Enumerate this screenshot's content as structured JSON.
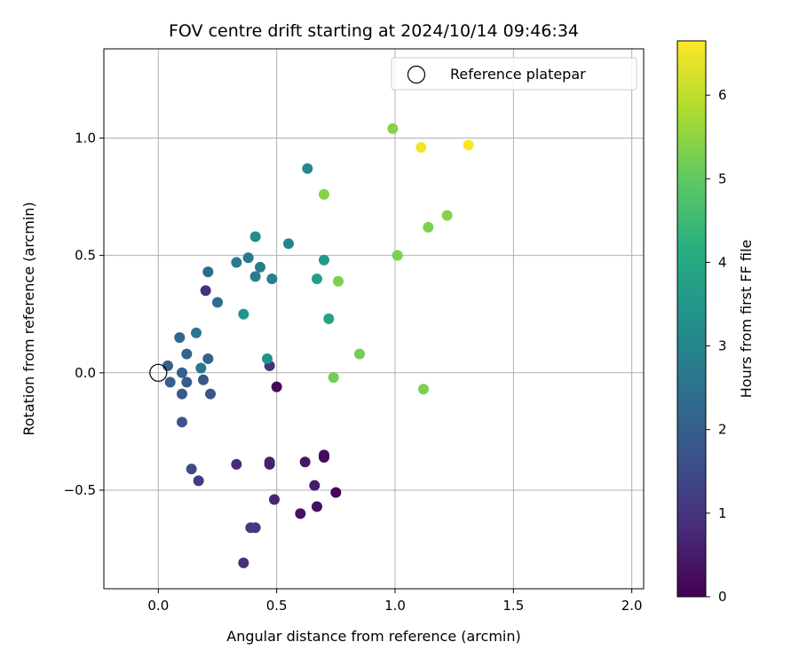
{
  "chart_data": {
    "type": "scatter",
    "title": "FOV centre drift starting at 2024/10/14 09:46:34",
    "xlabel": "Angular distance from reference (arcmin)",
    "ylabel": "Rotation from reference (arcmin)",
    "xlim": [
      -0.23,
      2.05
    ],
    "ylim": [
      -0.92,
      1.38
    ],
    "xticks": [
      0.0,
      0.5,
      1.0,
      1.5,
      2.0
    ],
    "xtick_labels": [
      "0.0",
      "0.5",
      "1.0",
      "1.5",
      "2.0"
    ],
    "yticks": [
      -0.5,
      0.0,
      0.5,
      1.0
    ],
    "ytick_labels": [
      "−0.5",
      "0.0",
      "0.5",
      "1.0"
    ],
    "grid": true,
    "legend": {
      "position": "top-right",
      "entries": [
        "Reference platepar"
      ]
    },
    "reference_point": {
      "x": 0.0,
      "y": 0.0
    },
    "colorbar": {
      "label": "Hours from first FF file",
      "colormap": "viridis",
      "range": [
        0,
        6.65
      ],
      "ticks": [
        0,
        1,
        2,
        3,
        4,
        5,
        6
      ],
      "tick_labels": [
        "0",
        "1",
        "2",
        "3",
        "4",
        "5",
        "6"
      ]
    },
    "points": [
      {
        "x": 0.5,
        "y": -0.06,
        "h": 0.1
      },
      {
        "x": 0.75,
        "y": -0.51,
        "h": 0.1
      },
      {
        "x": 0.7,
        "y": -0.36,
        "h": 0.2
      },
      {
        "x": 0.7,
        "y": -0.35,
        "h": 0.2
      },
      {
        "x": 0.67,
        "y": -0.57,
        "h": 0.3
      },
      {
        "x": 0.6,
        "y": -0.6,
        "h": 0.3
      },
      {
        "x": 0.62,
        "y": -0.38,
        "h": 0.4
      },
      {
        "x": 0.66,
        "y": -0.48,
        "h": 0.5
      },
      {
        "x": 0.47,
        "y": -0.39,
        "h": 0.6
      },
      {
        "x": 0.47,
        "y": -0.38,
        "h": 0.6
      },
      {
        "x": 0.49,
        "y": -0.54,
        "h": 0.7
      },
      {
        "x": 0.33,
        "y": -0.39,
        "h": 0.8
      },
      {
        "x": 0.36,
        "y": -0.81,
        "h": 0.9
      },
      {
        "x": 0.41,
        "y": -0.66,
        "h": 1.1
      },
      {
        "x": 0.39,
        "y": -0.66,
        "h": 1.1
      },
      {
        "x": 0.47,
        "y": 0.03,
        "h": 1.0
      },
      {
        "x": 0.2,
        "y": 0.35,
        "h": 0.9
      },
      {
        "x": 0.17,
        "y": -0.46,
        "h": 1.2
      },
      {
        "x": 0.14,
        "y": -0.41,
        "h": 1.5
      },
      {
        "x": 0.1,
        "y": -0.21,
        "h": 1.7
      },
      {
        "x": 0.19,
        "y": -0.03,
        "h": 1.8
      },
      {
        "x": 0.22,
        "y": -0.09,
        "h": 1.8
      },
      {
        "x": 0.1,
        "y": -0.09,
        "h": 1.9
      },
      {
        "x": 0.12,
        "y": -0.04,
        "h": 1.9
      },
      {
        "x": 0.05,
        "y": -0.04,
        "h": 2.0
      },
      {
        "x": 0.1,
        "y": 0.0,
        "h": 2.0
      },
      {
        "x": 0.04,
        "y": 0.03,
        "h": 2.0
      },
      {
        "x": 0.21,
        "y": 0.06,
        "h": 2.1
      },
      {
        "x": 0.12,
        "y": 0.08,
        "h": 2.1
      },
      {
        "x": 0.09,
        "y": 0.15,
        "h": 2.2
      },
      {
        "x": 0.21,
        "y": 0.43,
        "h": 2.3
      },
      {
        "x": 0.25,
        "y": 0.3,
        "h": 2.4
      },
      {
        "x": 0.18,
        "y": 0.02,
        "h": 2.6
      },
      {
        "x": 0.16,
        "y": 0.17,
        "h": 2.6
      },
      {
        "x": 0.33,
        "y": 0.47,
        "h": 2.7
      },
      {
        "x": 0.38,
        "y": 0.49,
        "h": 2.7
      },
      {
        "x": 0.41,
        "y": 0.41,
        "h": 2.8
      },
      {
        "x": 0.43,
        "y": 0.45,
        "h": 2.8
      },
      {
        "x": 0.48,
        "y": 0.4,
        "h": 2.9
      },
      {
        "x": 0.55,
        "y": 0.55,
        "h": 3.0
      },
      {
        "x": 0.63,
        "y": 0.87,
        "h": 3.1
      },
      {
        "x": 0.41,
        "y": 0.58,
        "h": 3.2
      },
      {
        "x": 0.36,
        "y": 0.25,
        "h": 3.4
      },
      {
        "x": 0.46,
        "y": 0.06,
        "h": 3.4
      },
      {
        "x": 0.7,
        "y": 0.48,
        "h": 3.6
      },
      {
        "x": 0.67,
        "y": 0.4,
        "h": 3.7
      },
      {
        "x": 0.72,
        "y": 0.23,
        "h": 3.8
      },
      {
        "x": 0.7,
        "y": 0.76,
        "h": 5.4
      },
      {
        "x": 0.76,
        "y": 0.39,
        "h": 5.3
      },
      {
        "x": 0.74,
        "y": -0.02,
        "h": 5.2
      },
      {
        "x": 0.85,
        "y": 0.08,
        "h": 5.2
      },
      {
        "x": 0.99,
        "y": 1.04,
        "h": 5.4
      },
      {
        "x": 1.01,
        "y": 0.5,
        "h": 5.3
      },
      {
        "x": 1.12,
        "y": -0.07,
        "h": 5.3
      },
      {
        "x": 1.14,
        "y": 0.62,
        "h": 5.3
      },
      {
        "x": 1.22,
        "y": 0.67,
        "h": 5.4
      },
      {
        "x": 1.11,
        "y": 0.96,
        "h": 6.5
      },
      {
        "x": 1.31,
        "y": 0.97,
        "h": 6.6
      }
    ]
  }
}
